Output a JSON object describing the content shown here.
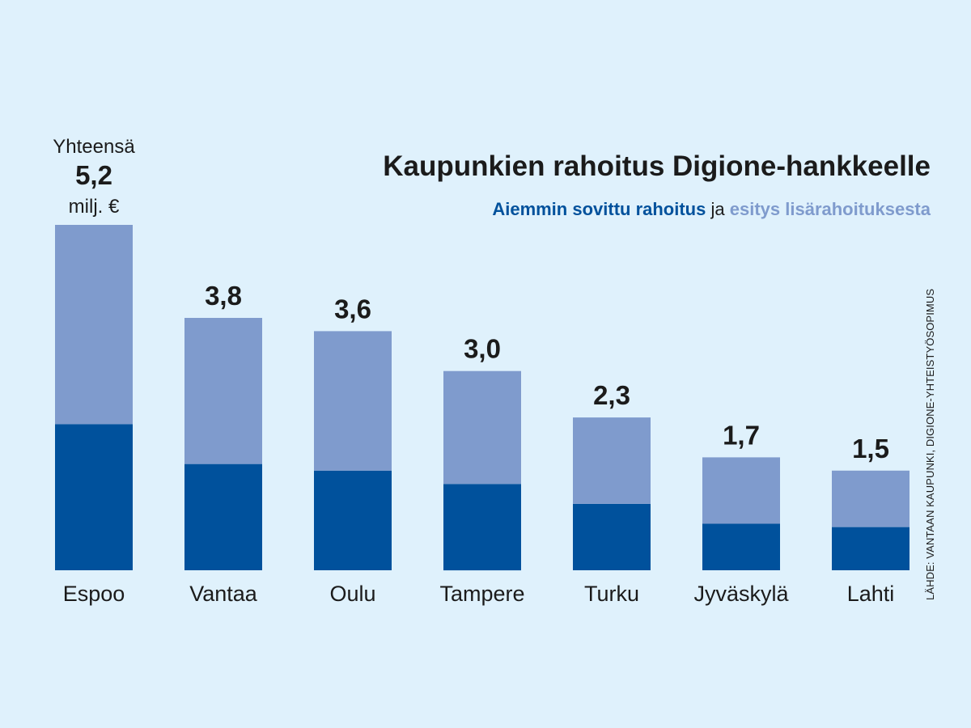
{
  "title": "Kaupunkien rahoitus Digione-hankkeelle",
  "subtitle": {
    "prior": "Aiemmin sovittu rahoitus",
    "conj": "ja",
    "extra": "esitys lisärahoituksesta"
  },
  "source": "LÄHDE: VANTAAN KAUPUNKI, DIGIONE-YHTEISTYÖSOPIMUS",
  "total_note": {
    "word": "Yhteensä",
    "unit": "milj. €"
  },
  "colors": {
    "prior": "#00519c",
    "extra": "#7f9bcd",
    "background": "#dff1fc",
    "text": "#1b1b1b"
  },
  "chart_data": {
    "type": "bar",
    "stacked": true,
    "unit": "milj. €",
    "categories": [
      "Espoo",
      "Vantaa",
      "Oulu",
      "Tampere",
      "Turku",
      "Jyväskylä",
      "Lahti"
    ],
    "series": [
      {
        "name": "Aiemmin sovittu rahoitus",
        "values": [
          2.2,
          1.6,
          1.5,
          1.3,
          1.0,
          0.7,
          0.65
        ]
      },
      {
        "name": "esitys lisärahoituksesta",
        "values": [
          3.0,
          2.2,
          2.1,
          1.7,
          1.3,
          1.0,
          0.85
        ]
      }
    ],
    "total_labels": [
      "5,2",
      "3,8",
      "3,6",
      "3,0",
      "2,3",
      "1,7",
      "1,5"
    ],
    "ylim": [
      0,
      5.2
    ],
    "grid": false
  }
}
